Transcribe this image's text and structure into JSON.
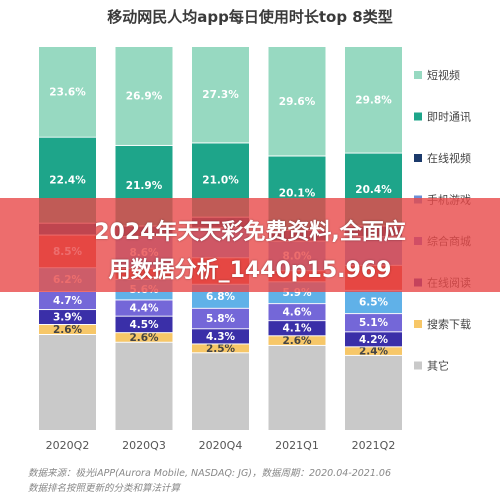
{
  "chart_data": {
    "type": "bar",
    "stacked": true,
    "normalized": true,
    "title": "移动网民人均app每日使用时长top 8类型",
    "categories": [
      "2020Q2",
      "2020Q3",
      "2020Q4",
      "2021Q1",
      "2021Q2"
    ],
    "series": [
      {
        "name": "其它",
        "color": "#c9c9c9",
        "values": [
          null,
          null,
          null,
          null,
          null
        ]
      },
      {
        "name": "搜索下载",
        "color": "#f7c768",
        "values": [
          2.6,
          2.6,
          2.5,
          2.6,
          2.4
        ]
      },
      {
        "name": "在线阅读",
        "color": "#3a2fa8",
        "values": [
          3.9,
          4.5,
          4.3,
          4.1,
          4.2
        ]
      },
      {
        "name": "综合商城",
        "color": "#7467d8",
        "values": [
          4.7,
          4.4,
          5.8,
          4.6,
          5.1
        ]
      },
      {
        "name": "",
        "color": "#60b1e8",
        "values": [
          6.2,
          5.6,
          6.8,
          5.9,
          6.5
        ]
      },
      {
        "name": "",
        "color": "#d9412e",
        "values": [
          8.5,
          null,
          null,
          null,
          null
        ]
      },
      {
        "name": "手机游戏",
        "color": "#6c8fd6",
        "values": [
          null,
          8.6,
          null,
          8.0,
          null
        ]
      },
      {
        "name": "在线视频",
        "color": "#1b3a6b",
        "values": [
          null,
          null,
          null,
          null,
          null
        ]
      },
      {
        "name": "即时通讯",
        "color": "#1ea58a",
        "values": [
          22.4,
          21.9,
          21.0,
          20.1,
          20.4
        ]
      },
      {
        "name": "短视频",
        "color": "#97d9c1",
        "values": [
          23.6,
          26.9,
          27.3,
          29.6,
          29.8
        ]
      }
    ],
    "legend_position": "right",
    "grid": false
  },
  "source_lines": [
    "数据来源：极光iAPP(Aurora Mobile, NASDAQ: JG)，数据周期：2020.04-2021.06",
    "数据排名按照更新的分类和算法计算"
  ],
  "overlay": {
    "line1": "2024年天天彩免费资料,全面应",
    "line2": "用数据分析_1440p15.969"
  }
}
